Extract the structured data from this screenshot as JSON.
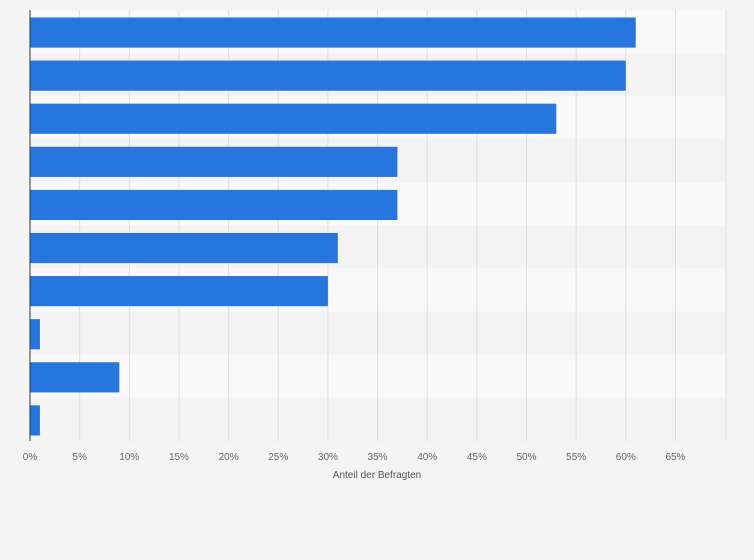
{
  "chart_data": {
    "type": "bar",
    "orientation": "horizontal",
    "title": "",
    "xlabel": "Anteil der Befragten",
    "ylabel": "",
    "categories": [
      "",
      "",
      "",
      "",
      "",
      "",
      "",
      "",
      "",
      ""
    ],
    "values": [
      61,
      60,
      53,
      37,
      37,
      31,
      30,
      1,
      9,
      1
    ],
    "xlim": [
      0,
      70
    ],
    "xticks": [
      0,
      5,
      10,
      15,
      20,
      25,
      30,
      35,
      40,
      45,
      50,
      55,
      60,
      65
    ],
    "tick_suffix": "%",
    "grid": true,
    "colors": {
      "bar": "#2776dd",
      "band_light": "#f9f9f9",
      "band_dark": "#f3f3f3",
      "grid": "#e0e0e0",
      "axis": "#333333",
      "background": "#f4f4f4"
    }
  }
}
